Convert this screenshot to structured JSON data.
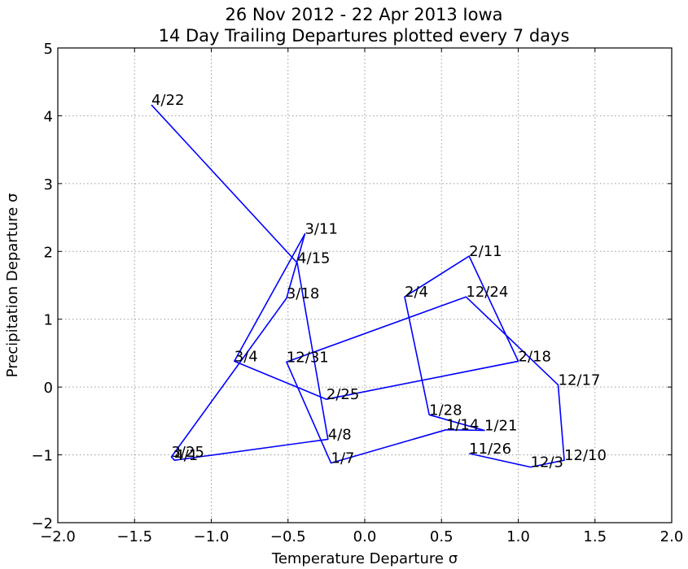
{
  "chart_data": {
    "type": "line",
    "title": "26 Nov 2012 - 22 Apr 2013 Iowa",
    "subtitle": "14 Day Trailing Departures plotted every 7 days",
    "xlabel": "Temperature Departure σ",
    "ylabel": "Precipitation Departure σ",
    "xlim": [
      -2.0,
      2.0
    ],
    "ylim": [
      -2,
      5
    ],
    "xticks": [
      "−2.0",
      "−1.5",
      "−1.0",
      "−0.5",
      "0.0",
      "0.5",
      "1.0",
      "1.5",
      "2.0"
    ],
    "xtick_values": [
      -2.0,
      -1.5,
      -1.0,
      -0.5,
      0.0,
      0.5,
      1.0,
      1.5,
      2.0
    ],
    "yticks": [
      "−2",
      "−1",
      "0",
      "1",
      "2",
      "3",
      "4",
      "5"
    ],
    "ytick_values": [
      -2,
      -1,
      0,
      1,
      2,
      3,
      4,
      5
    ],
    "grid": true,
    "line_color": "#0000ff",
    "points": [
      {
        "label": "11/26",
        "x": 0.68,
        "y": -0.98
      },
      {
        "label": "12/3",
        "x": 1.08,
        "y": -1.18
      },
      {
        "label": "12/10",
        "x": 1.3,
        "y": -1.08
      },
      {
        "label": "12/17",
        "x": 1.26,
        "y": 0.03
      },
      {
        "label": "12/24",
        "x": 0.66,
        "y": 1.33
      },
      {
        "label": "12/31",
        "x": -0.51,
        "y": 0.37
      },
      {
        "label": "1/7",
        "x": -0.22,
        "y": -1.12
      },
      {
        "label": "1/14",
        "x": 0.53,
        "y": -0.63
      },
      {
        "label": "1/21",
        "x": 0.78,
        "y": -0.64
      },
      {
        "label": "1/28",
        "x": 0.42,
        "y": -0.41
      },
      {
        "label": "2/4",
        "x": 0.26,
        "y": 1.33
      },
      {
        "label": "2/11",
        "x": 0.68,
        "y": 1.93
      },
      {
        "label": "2/18",
        "x": 1.0,
        "y": 0.38
      },
      {
        "label": "2/25",
        "x": -0.25,
        "y": -0.18
      },
      {
        "label": "3/4",
        "x": -0.85,
        "y": 0.38
      },
      {
        "label": "3/11",
        "x": -0.39,
        "y": 2.26
      },
      {
        "label": "3/18",
        "x": -0.51,
        "y": 1.31
      },
      {
        "label": "3/25",
        "x": -1.26,
        "y": -1.03
      },
      {
        "label": "4/1",
        "x": -1.24,
        "y": -1.08
      },
      {
        "label": "4/8",
        "x": -0.24,
        "y": -0.77
      },
      {
        "label": "4/15",
        "x": -0.44,
        "y": 1.83
      },
      {
        "label": "4/22",
        "x": -1.39,
        "y": 4.16
      }
    ]
  }
}
